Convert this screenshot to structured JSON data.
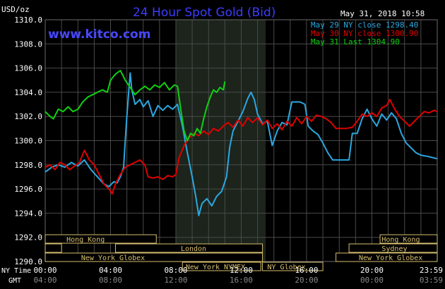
{
  "header": {
    "title": "24 Hour Spot Gold (Bid)",
    "unit": "USD/oz",
    "website": "www.kitco.com",
    "timestamp": "May 31, 2018 10:58"
  },
  "colors": {
    "background": "#000000",
    "grid": "#4a4a4a",
    "axis_text": "#ffffff",
    "title": "#3c3cff",
    "series_may29": "#2aa8e0",
    "series_may30": "#e00000",
    "series_may31": "#10d010",
    "session_bar": "#d8c070"
  },
  "legend": [
    {
      "text": "May 29 NY close 1298.40",
      "color": "#2aa8e0"
    },
    {
      "text": "May 30 NY close 1300.90",
      "color": "#e00000"
    },
    {
      "text": "May 31 Last 1304.90",
      "color": "#10d010"
    }
  ],
  "time_axis": {
    "ny_label": "NY Time",
    "gmt_label": "GMT",
    "ny_ticks": [
      "00:00",
      "04:00",
      "08:00",
      "12:00",
      "16:00",
      "20:00",
      "23:59"
    ],
    "gmt_ticks": [
      "04:00",
      "08:00",
      "12:00",
      "16:00",
      "20:00",
      "00:00",
      "03:59"
    ]
  },
  "sessions": {
    "hong_kong": "Hong Kong",
    "london": "London",
    "new_york_globex": "New York Globex",
    "new_york_nymex": "New York NYMEX",
    "ny_globex": "NY Globex",
    "sydney": "Sydney"
  },
  "chart_data": {
    "type": "line",
    "title": "24 Hour Spot Gold (Bid)",
    "ylabel": "USD/oz",
    "ylim": [
      1290,
      1310
    ],
    "xlim_hours_ny": [
      0,
      24
    ],
    "y_ticks": [
      1290.0,
      1292.0,
      1294.0,
      1296.0,
      1298.0,
      1300.0,
      1302.0,
      1304.0,
      1306.0,
      1308.0,
      1310.0
    ],
    "highlight_range_hours_ny": [
      8.0,
      13.5
    ],
    "grid": true,
    "legend_position": "top-right",
    "series": [
      {
        "name": "May 29 NY close 1298.40",
        "color": "#2aa8e0",
        "points": [
          [
            0,
            1297.4
          ],
          [
            0.4,
            1297.8
          ],
          [
            0.8,
            1298.0
          ],
          [
            1.2,
            1297.8
          ],
          [
            1.6,
            1298.2
          ],
          [
            2.0,
            1297.9
          ],
          [
            2.4,
            1298.4
          ],
          [
            2.8,
            1297.6
          ],
          [
            3.2,
            1297.0
          ],
          [
            3.6,
            1296.4
          ],
          [
            3.9,
            1296.2
          ],
          [
            4.2,
            1296.6
          ],
          [
            4.4,
            1296.5
          ],
          [
            4.6,
            1297.0
          ],
          [
            4.8,
            1297.8
          ],
          [
            4.9,
            1300.0
          ],
          [
            5.0,
            1302.0
          ],
          [
            5.1,
            1303.8
          ],
          [
            5.2,
            1305.6
          ],
          [
            5.3,
            1304.2
          ],
          [
            5.5,
            1303.0
          ],
          [
            5.8,
            1303.4
          ],
          [
            6.0,
            1302.8
          ],
          [
            6.3,
            1303.3
          ],
          [
            6.6,
            1302.0
          ],
          [
            6.9,
            1302.9
          ],
          [
            7.2,
            1302.5
          ],
          [
            7.5,
            1302.9
          ],
          [
            7.8,
            1302.6
          ],
          [
            8.1,
            1303.0
          ],
          [
            8.4,
            1301.2
          ],
          [
            8.7,
            1299.0
          ],
          [
            9.0,
            1297.0
          ],
          [
            9.2,
            1295.5
          ],
          [
            9.4,
            1293.8
          ],
          [
            9.6,
            1294.8
          ],
          [
            9.9,
            1295.2
          ],
          [
            10.2,
            1294.6
          ],
          [
            10.5,
            1295.4
          ],
          [
            10.8,
            1295.8
          ],
          [
            11.1,
            1297.0
          ],
          [
            11.3,
            1299.5
          ],
          [
            11.5,
            1300.8
          ],
          [
            11.8,
            1301.6
          ],
          [
            12.1,
            1302.4
          ],
          [
            12.4,
            1303.5
          ],
          [
            12.6,
            1304.0
          ],
          [
            12.8,
            1303.4
          ],
          [
            13.0,
            1302.2
          ],
          [
            13.3,
            1301.4
          ],
          [
            13.6,
            1301.6
          ],
          [
            13.9,
            1299.6
          ],
          [
            14.2,
            1300.8
          ],
          [
            14.5,
            1301.5
          ],
          [
            14.8,
            1301.3
          ],
          [
            15.0,
            1302.6
          ],
          [
            15.1,
            1303.2
          ],
          [
            15.6,
            1303.2
          ],
          [
            15.9,
            1303.0
          ],
          [
            16.1,
            1301.2
          ],
          [
            16.4,
            1300.8
          ],
          [
            16.7,
            1300.5
          ],
          [
            17.0,
            1299.8
          ],
          [
            17.3,
            1299.0
          ],
          [
            17.6,
            1298.4
          ],
          [
            18.6,
            1298.4
          ],
          [
            18.8,
            1300.6
          ],
          [
            19.1,
            1300.6
          ],
          [
            19.4,
            1301.8
          ],
          [
            19.7,
            1302.6
          ],
          [
            20.0,
            1301.8
          ],
          [
            20.3,
            1301.2
          ],
          [
            20.6,
            1302.2
          ],
          [
            20.9,
            1301.7
          ],
          [
            21.2,
            1302.3
          ],
          [
            21.5,
            1301.8
          ],
          [
            21.8,
            1300.6
          ],
          [
            22.1,
            1299.8
          ],
          [
            22.4,
            1299.4
          ],
          [
            22.7,
            1299.0
          ],
          [
            23.0,
            1298.8
          ],
          [
            23.4,
            1298.7
          ],
          [
            23.7,
            1298.6
          ],
          [
            24.0,
            1298.5
          ]
        ]
      },
      {
        "name": "May 30 NY close 1300.90",
        "color": "#e00000",
        "points": [
          [
            0,
            1297.8
          ],
          [
            0.3,
            1298.0
          ],
          [
            0.6,
            1297.6
          ],
          [
            0.9,
            1298.2
          ],
          [
            1.2,
            1298.0
          ],
          [
            1.5,
            1297.6
          ],
          [
            1.8,
            1297.9
          ],
          [
            2.1,
            1298.2
          ],
          [
            2.4,
            1299.2
          ],
          [
            2.7,
            1298.4
          ],
          [
            3.0,
            1298.0
          ],
          [
            3.3,
            1297.2
          ],
          [
            3.6,
            1296.4
          ],
          [
            3.9,
            1296.0
          ],
          [
            4.1,
            1295.6
          ],
          [
            4.3,
            1296.4
          ],
          [
            4.6,
            1297.2
          ],
          [
            4.9,
            1297.8
          ],
          [
            5.2,
            1298.0
          ],
          [
            5.5,
            1298.2
          ],
          [
            5.8,
            1298.4
          ],
          [
            6.1,
            1298.0
          ],
          [
            6.3,
            1297.0
          ],
          [
            6.6,
            1296.9
          ],
          [
            6.9,
            1297.0
          ],
          [
            7.2,
            1296.8
          ],
          [
            7.5,
            1297.1
          ],
          [
            7.8,
            1297.0
          ],
          [
            8.0,
            1297.2
          ],
          [
            8.2,
            1298.6
          ],
          [
            8.5,
            1299.6
          ],
          [
            8.8,
            1300.2
          ],
          [
            9.1,
            1300.6
          ],
          [
            9.4,
            1300.4
          ],
          [
            9.7,
            1300.8
          ],
          [
            10.0,
            1300.5
          ],
          [
            10.3,
            1301.0
          ],
          [
            10.6,
            1300.8
          ],
          [
            10.9,
            1301.2
          ],
          [
            11.2,
            1301.5
          ],
          [
            11.5,
            1301.1
          ],
          [
            11.8,
            1301.7
          ],
          [
            12.1,
            1301.2
          ],
          [
            12.4,
            1301.9
          ],
          [
            12.7,
            1301.5
          ],
          [
            13.0,
            1301.9
          ],
          [
            13.3,
            1301.3
          ],
          [
            13.6,
            1301.7
          ],
          [
            13.9,
            1301.0
          ],
          [
            14.2,
            1301.4
          ],
          [
            14.5,
            1300.9
          ],
          [
            14.8,
            1301.6
          ],
          [
            15.1,
            1301.2
          ],
          [
            15.4,
            1301.9
          ],
          [
            15.7,
            1301.4
          ],
          [
            16.0,
            1302.0
          ],
          [
            16.3,
            1301.6
          ],
          [
            16.6,
            1302.1
          ],
          [
            16.9,
            1302.0
          ],
          [
            17.2,
            1301.8
          ],
          [
            17.5,
            1301.5
          ],
          [
            17.8,
            1301.0
          ],
          [
            18.1,
            1301.0
          ],
          [
            18.4,
            1301.0
          ],
          [
            18.8,
            1301.1
          ],
          [
            19.1,
            1301.6
          ],
          [
            19.4,
            1302.2
          ],
          [
            19.7,
            1302.0
          ],
          [
            20.0,
            1302.3
          ],
          [
            20.3,
            1302.0
          ],
          [
            20.6,
            1302.7
          ],
          [
            20.9,
            1302.9
          ],
          [
            21.1,
            1303.4
          ],
          [
            21.4,
            1302.6
          ],
          [
            21.7,
            1302.0
          ],
          [
            22.0,
            1301.6
          ],
          [
            22.3,
            1301.2
          ],
          [
            22.6,
            1301.6
          ],
          [
            22.9,
            1302.0
          ],
          [
            23.2,
            1302.4
          ],
          [
            23.5,
            1302.3
          ],
          [
            23.8,
            1302.5
          ],
          [
            24.0,
            1302.4
          ]
        ]
      },
      {
        "name": "May 31 Last 1304.90",
        "color": "#10d010",
        "points": [
          [
            0,
            1302.4
          ],
          [
            0.3,
            1302.0
          ],
          [
            0.5,
            1301.8
          ],
          [
            0.8,
            1302.6
          ],
          [
            1.1,
            1302.4
          ],
          [
            1.4,
            1302.8
          ],
          [
            1.7,
            1302.4
          ],
          [
            2.0,
            1302.6
          ],
          [
            2.3,
            1303.2
          ],
          [
            2.6,
            1303.6
          ],
          [
            2.9,
            1303.8
          ],
          [
            3.2,
            1304.0
          ],
          [
            3.5,
            1304.2
          ],
          [
            3.8,
            1304.0
          ],
          [
            4.0,
            1305.0
          ],
          [
            4.3,
            1305.5
          ],
          [
            4.6,
            1305.8
          ],
          [
            4.9,
            1305.0
          ],
          [
            5.2,
            1304.4
          ],
          [
            5.5,
            1303.8
          ],
          [
            5.8,
            1304.2
          ],
          [
            6.1,
            1304.5
          ],
          [
            6.4,
            1304.2
          ],
          [
            6.7,
            1304.6
          ],
          [
            7.0,
            1304.4
          ],
          [
            7.3,
            1304.8
          ],
          [
            7.6,
            1304.2
          ],
          [
            7.9,
            1304.6
          ],
          [
            8.1,
            1304.5
          ],
          [
            8.3,
            1302.6
          ],
          [
            8.5,
            1300.8
          ],
          [
            8.7,
            1300.0
          ],
          [
            8.9,
            1300.6
          ],
          [
            9.1,
            1300.4
          ],
          [
            9.3,
            1301.0
          ],
          [
            9.5,
            1300.6
          ],
          [
            9.7,
            1301.8
          ],
          [
            9.9,
            1302.8
          ],
          [
            10.1,
            1303.6
          ],
          [
            10.3,
            1304.2
          ],
          [
            10.5,
            1304.0
          ],
          [
            10.7,
            1304.4
          ],
          [
            10.9,
            1304.2
          ],
          [
            11.0,
            1304.9
          ]
        ]
      }
    ]
  }
}
